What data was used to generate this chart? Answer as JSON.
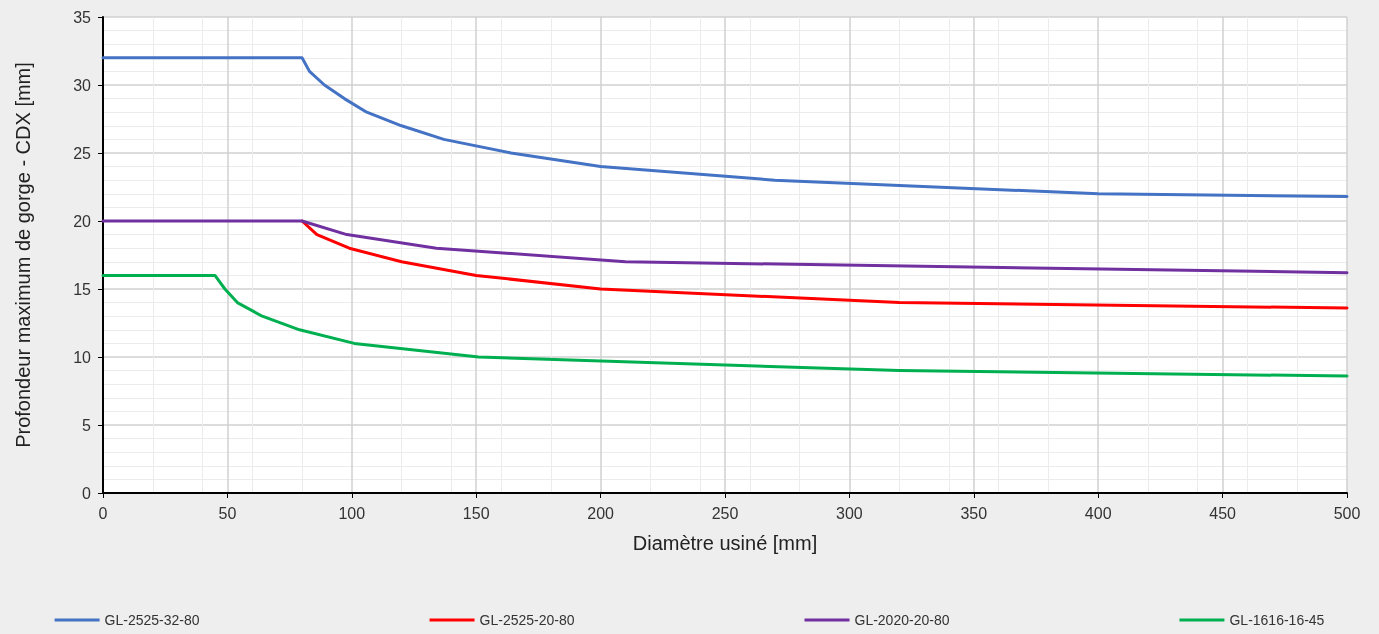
{
  "chart_data": {
    "type": "line",
    "xlabel": "Diamètre usiné [mm]",
    "ylabel": "Profondeur maximum de gorge - CDX [mm]",
    "xlim": [
      0,
      500
    ],
    "xticks": [
      0,
      50,
      100,
      150,
      200,
      250,
      300,
      350,
      400,
      450,
      500
    ],
    "ylim": [
      0,
      35
    ],
    "yticks": [
      0,
      5,
      10,
      15,
      20,
      25,
      30,
      35
    ],
    "grid": true,
    "legend": "bottom",
    "marker": "none",
    "line_style": "solid",
    "series": [
      {
        "name": "GL-2525-32-80",
        "color": "#4472c4",
        "x": [
          0,
          80,
          83,
          89,
          97,
          106,
          120,
          137,
          164,
          200,
          270,
          400,
          500
        ],
        "values": [
          32,
          32,
          31,
          30,
          29,
          28,
          27,
          26,
          25,
          24,
          23,
          22,
          21.8
        ]
      },
      {
        "name": "GL-2525-20-80",
        "color": "#ff0000",
        "x": [
          80,
          86,
          99,
          120,
          150,
          200,
          320,
          500
        ],
        "values": [
          20,
          19,
          18,
          17,
          16,
          15,
          14,
          13.6
        ]
      },
      {
        "name": "GL-2020-20-80",
        "color": "#7030a0",
        "x": [
          0,
          80,
          98,
          134,
          210,
          500
        ],
        "values": [
          20,
          20,
          19,
          18,
          17,
          16.2
        ]
      },
      {
        "name": "GL-1616-16-45",
        "color": "#00b050",
        "x": [
          0,
          45,
          49,
          54,
          64,
          79,
          101,
          151,
          320,
          500
        ],
        "values": [
          16,
          16,
          15,
          14,
          13,
          12,
          11,
          10,
          9,
          8.6
        ]
      }
    ]
  }
}
